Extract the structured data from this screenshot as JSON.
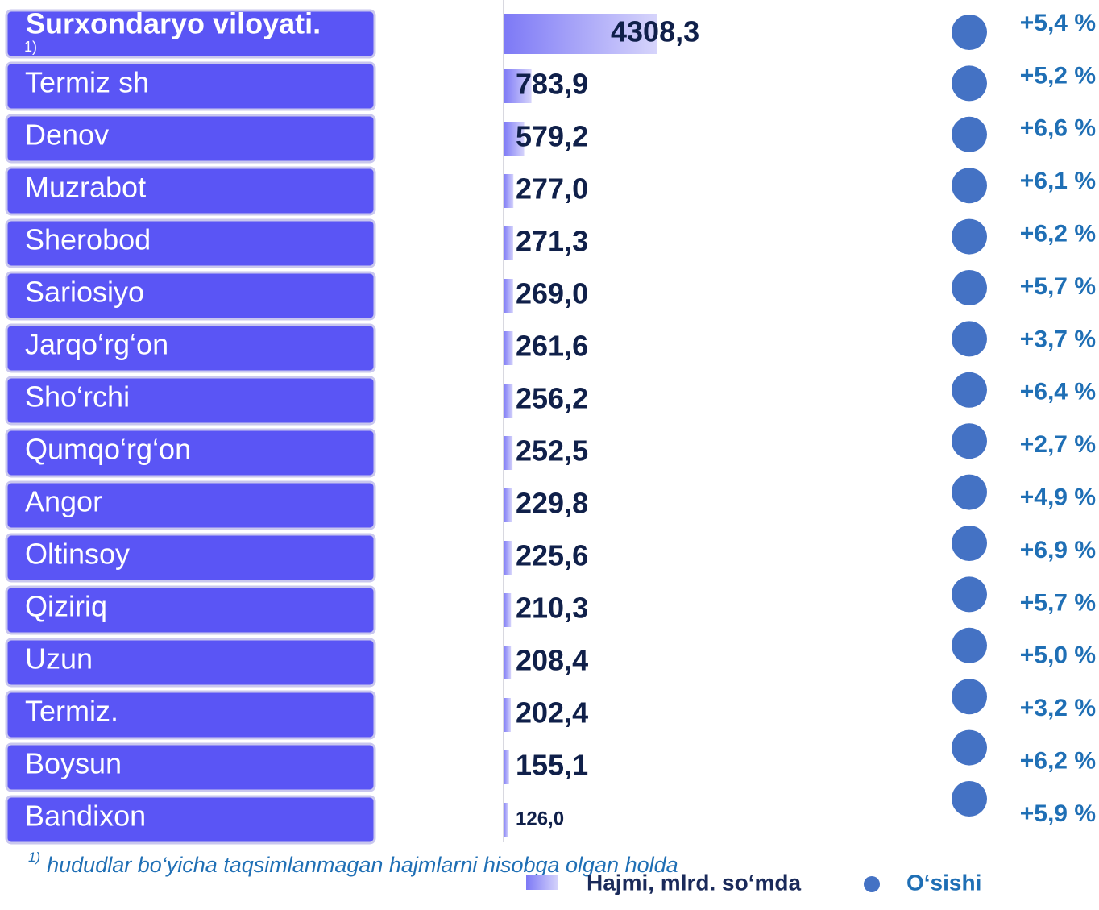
{
  "chart_data": {
    "type": "bar",
    "categories": [
      "Surxondaryo viloyati.",
      "Termiz sh",
      "Denov",
      "Muzrabot",
      "Sherobod",
      "Sariosiyo",
      "Jarqo‘rg‘on",
      "Sho‘rchi",
      "Qumqo‘rg‘on",
      "Angor",
      "Oltinsoy",
      "Qiziriq",
      "Uzun",
      "Termiz.",
      "Boysun",
      "Bandixon"
    ],
    "category_note": "1)",
    "series": [
      {
        "name": "Hajmi, mlrd. so‘mda",
        "color": "#8a86f6",
        "values": [
          4308.3,
          783.9,
          579.2,
          277.0,
          271.3,
          269.0,
          261.6,
          256.2,
          252.5,
          229.8,
          225.6,
          210.3,
          208.4,
          202.4,
          155.1,
          126.0
        ],
        "value_labels": [
          "4308,3",
          "783,9",
          "579,2",
          "277,0",
          "271,3",
          "269,0",
          "261,6",
          "256,2",
          "252,5",
          "229,8",
          "225,6",
          "210,3",
          "208,4",
          "202,4",
          "155,1",
          "126,0"
        ]
      }
    ],
    "growth": {
      "name": "O‘sishi",
      "color": "#4472c4",
      "values": [
        5.4,
        5.2,
        6.6,
        6.1,
        6.2,
        5.7,
        3.7,
        6.4,
        2.7,
        4.9,
        6.9,
        5.7,
        5.0,
        3.2,
        6.2,
        5.9
      ],
      "value_labels": [
        "+5,4 %",
        "+5,2 %",
        "+6,6 %",
        "+6,1 %",
        "+6,2 %",
        "+5,7 %",
        "+3,7 %",
        "+6,4 %",
        "+2,7 %",
        "+4,9 %",
        "+6,9 %",
        "+5,7 %",
        "+5,0 %",
        "+3,2 %",
        "+6,2 %",
        "+5,9 %"
      ]
    },
    "footnote": {
      "mark": "1)",
      "text": "hududlar   bo‘yicha  taqsimlanmagan hajmlarni hisobga olgan holda"
    }
  }
}
